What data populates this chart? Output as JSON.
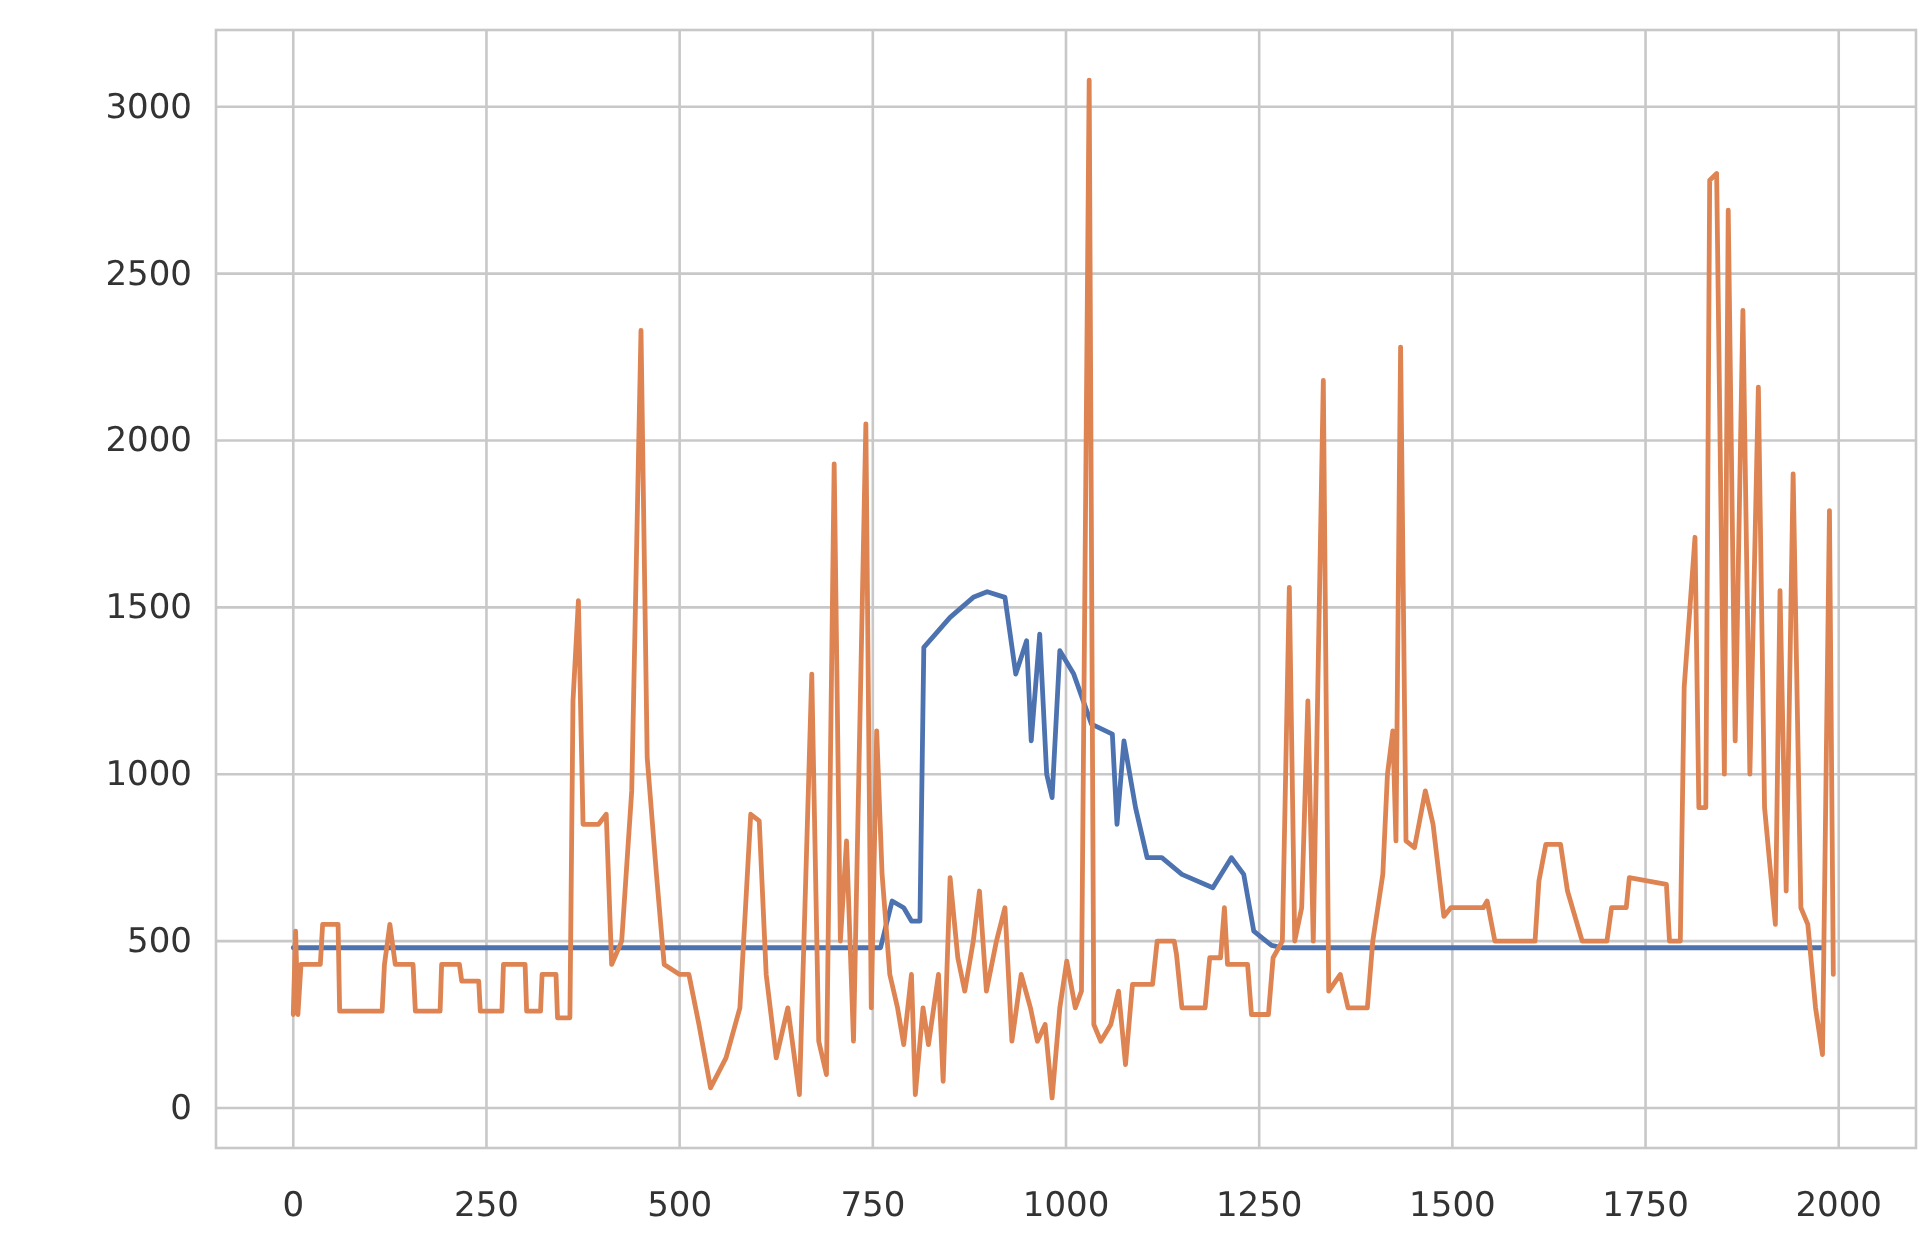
{
  "chart_data": {
    "type": "line",
    "xlim": [
      -100,
      2100
    ],
    "ylim": [
      -120,
      3230
    ],
    "xticks": [
      0,
      250,
      500,
      750,
      1000,
      1250,
      1500,
      1750,
      2000
    ],
    "yticks": [
      0,
      500,
      1000,
      1500,
      2000,
      2500,
      3000
    ],
    "grid": true,
    "line_style": "solid",
    "marker": "none",
    "series": [
      {
        "color": "#4c72b0",
        "x": [
          0,
          760,
          775,
          790,
          800,
          811,
          816,
          850,
          880,
          898,
          921,
          935,
          949,
          955,
          966,
          975,
          982,
          992,
          1010,
          1033,
          1060,
          1066,
          1075,
          1090,
          1105,
          1124,
          1150,
          1190,
          1214,
          1230,
          1243,
          1266,
          1280,
          1980
        ],
        "values": [
          480,
          480,
          620,
          600,
          560,
          560,
          1380,
          1470,
          1530,
          1547,
          1530,
          1300,
          1400,
          1100,
          1420,
          1000,
          930,
          1370,
          1300,
          1150,
          1120,
          850,
          1100,
          900,
          750,
          750,
          700,
          660,
          750,
          700,
          530,
          487,
          480,
          480
        ]
      },
      {
        "color": "#dd8452",
        "x": [
          0,
          3,
          6,
          10,
          35,
          38,
          58,
          60,
          115,
          118,
          125,
          132,
          155,
          158,
          190,
          192,
          215,
          218,
          240,
          242,
          270,
          272,
          300,
          302,
          320,
          322,
          340,
          342,
          358,
          362,
          369,
          375,
          395,
          405,
          412,
          425,
          438,
          450,
          458,
          470,
          480,
          500,
          512,
          525,
          540,
          560,
          578,
          592,
          603,
          612,
          625,
          640,
          655,
          671,
          680,
          690,
          700,
          708,
          716,
          725,
          741,
          748,
          755,
          762,
          772,
          782,
          790,
          800,
          805,
          815,
          822,
          835,
          841,
          850,
          860,
          869,
          880,
          888,
          897,
          910,
          921,
          930,
          942,
          954,
          963,
          973,
          982,
          992,
          1001,
          1012,
          1020,
          1030,
          1036,
          1045,
          1058,
          1068,
          1077,
          1086,
          1112,
          1118,
          1140,
          1143,
          1150,
          1180,
          1186,
          1200,
          1205,
          1209,
          1235,
          1240,
          1262,
          1268,
          1280,
          1289,
          1296,
          1305,
          1313,
          1320,
          1333,
          1340,
          1355,
          1365,
          1390,
          1397,
          1410,
          1416,
          1423,
          1427,
          1433,
          1440,
          1451,
          1465,
          1475,
          1489,
          1498,
          1540,
          1545,
          1555,
          1564,
          1607,
          1612,
          1621,
          1640,
          1649,
          1668,
          1700,
          1706,
          1725,
          1729,
          1777,
          1781,
          1795,
          1800,
          1814,
          1819,
          1828,
          1833,
          1842,
          1852,
          1857,
          1866,
          1876,
          1885,
          1896,
          1904,
          1918,
          1924,
          1932,
          1941,
          1951,
          1960,
          1970,
          1979,
          1988,
          1993
        ],
        "values": [
          280,
          530,
          280,
          430,
          430,
          550,
          550,
          290,
          290,
          430,
          550,
          430,
          430,
          290,
          290,
          430,
          430,
          380,
          380,
          290,
          290,
          430,
          430,
          290,
          290,
          400,
          400,
          270,
          270,
          1220,
          1520,
          850,
          850,
          880,
          430,
          500,
          950,
          2330,
          1050,
          700,
          430,
          400,
          400,
          250,
          60,
          150,
          300,
          880,
          860,
          400,
          150,
          300,
          40,
          1300,
          200,
          100,
          1930,
          500,
          800,
          200,
          2050,
          300,
          1130,
          700,
          400,
          300,
          190,
          400,
          40,
          300,
          190,
          400,
          80,
          690,
          450,
          350,
          500,
          650,
          350,
          500,
          600,
          200,
          400,
          300,
          200,
          250,
          30,
          300,
          440,
          300,
          350,
          3080,
          250,
          200,
          250,
          350,
          130,
          370,
          370,
          500,
          500,
          460,
          300,
          300,
          450,
          450,
          600,
          430,
          430,
          280,
          280,
          450,
          500,
          1560,
          500,
          600,
          1220,
          500,
          2180,
          350,
          400,
          300,
          300,
          500,
          700,
          1000,
          1130,
          800,
          2280,
          800,
          780,
          950,
          850,
          574,
          600,
          600,
          620,
          500,
          500,
          500,
          680,
          790,
          790,
          650,
          500,
          500,
          600,
          600,
          690,
          670,
          500,
          500,
          1260,
          1710,
          900,
          900,
          2780,
          2800,
          1000,
          2690,
          1100,
          2390,
          1000,
          2160,
          900,
          550,
          1550,
          650,
          1900,
          600,
          550,
          300,
          160,
          1790,
          400
        ]
      }
    ]
  }
}
